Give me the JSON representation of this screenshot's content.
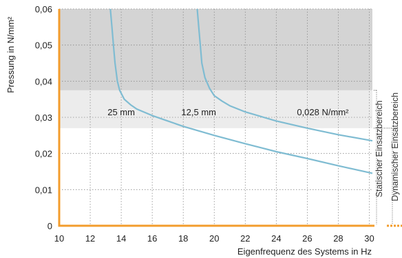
{
  "chart_data": {
    "type": "line",
    "xlabel": "Eigenfrequenz des Systems in Hz",
    "ylabel": "Pressung in N/mm²",
    "xlim": [
      10,
      30.2
    ],
    "ylim": [
      0,
      0.06
    ],
    "x_ticks": [
      "10",
      "12",
      "14",
      "16",
      "18",
      "20",
      "22",
      "24",
      "26",
      "28",
      "30"
    ],
    "y_ticks": [
      "0",
      "0,01",
      "0,02",
      "0,03",
      "0,04",
      "0,05",
      "0,06"
    ],
    "x_tick_values": [
      10,
      12,
      14,
      16,
      18,
      20,
      22,
      24,
      26,
      28,
      30
    ],
    "y_tick_values": [
      0,
      0.01,
      0.02,
      0.03,
      0.04,
      0.05,
      0.06
    ],
    "grid": "dashed",
    "regions": [
      {
        "y0": 0.0375,
        "y1": 0.06,
        "color": "#d4d4d4"
      },
      {
        "y0": 0.027,
        "y1": 0.0375,
        "color": "#ececec"
      }
    ],
    "bracket_labels": [
      "Statischer Einsatzbereich",
      "Dynamischer Einsatzbereich"
    ],
    "annotations": [
      {
        "text": "25 mm",
        "x": 14.0,
        "y": 0.0315
      },
      {
        "text": "12,5 mm",
        "x": 19.0,
        "y": 0.0315
      },
      {
        "text": "0,028 N/mm²",
        "x": 27.0,
        "y": 0.0315
      }
    ],
    "series": [
      {
        "color": "#7fbcd2",
        "points": [
          [
            13.3,
            0.06
          ],
          [
            13.4,
            0.055
          ],
          [
            13.5,
            0.05
          ],
          [
            13.6,
            0.045
          ],
          [
            13.75,
            0.04
          ],
          [
            13.9,
            0.0375
          ],
          [
            14.2,
            0.035
          ],
          [
            14.6,
            0.0335
          ],
          [
            15.0,
            0.0323
          ],
          [
            16,
            0.0305
          ],
          [
            17,
            0.029
          ],
          [
            18,
            0.0275
          ],
          [
            20,
            0.025
          ],
          [
            22,
            0.0227
          ],
          [
            24,
            0.0205
          ],
          [
            26,
            0.0186
          ],
          [
            28,
            0.0166
          ],
          [
            30.2,
            0.0145
          ]
        ]
      },
      {
        "color": "#7fbcd2",
        "points": [
          [
            18.9,
            0.06
          ],
          [
            19.0,
            0.055
          ],
          [
            19.1,
            0.05
          ],
          [
            19.2,
            0.045
          ],
          [
            19.4,
            0.041
          ],
          [
            19.7,
            0.038
          ],
          [
            20.0,
            0.036
          ],
          [
            20.5,
            0.0345
          ],
          [
            21,
            0.0332
          ],
          [
            22,
            0.0315
          ],
          [
            24,
            0.029
          ],
          [
            26,
            0.027
          ],
          [
            28,
            0.0252
          ],
          [
            30.2,
            0.0235
          ]
        ]
      }
    ]
  },
  "colors": {
    "axis": "#f39c2c",
    "curve": "#7fbcd2",
    "grid": "#8a8a8a",
    "bracket": "#555555"
  }
}
